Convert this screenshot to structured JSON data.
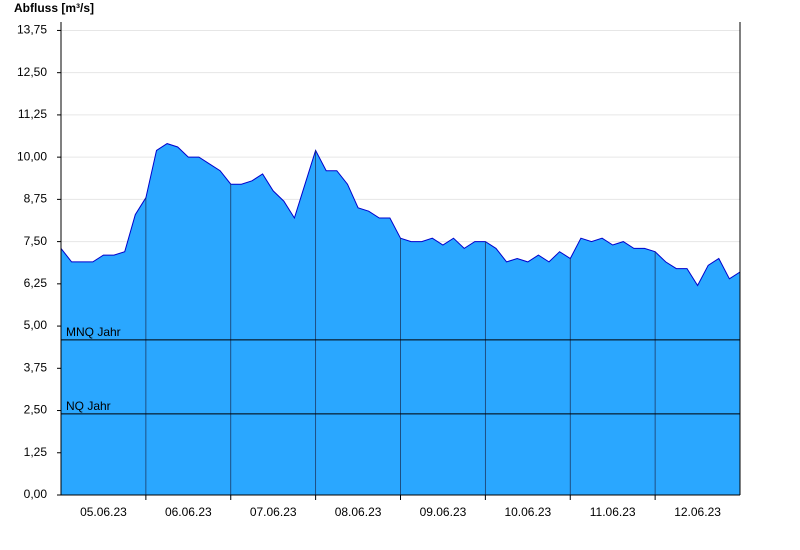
{
  "chart_data": {
    "type": "area",
    "title": "Abfluss [m³/s]",
    "x": [
      0,
      0.125,
      0.25,
      0.375,
      0.5,
      0.625,
      0.75,
      0.875,
      1,
      1.125,
      1.25,
      1.375,
      1.5,
      1.625,
      1.75,
      1.875,
      2,
      2.125,
      2.25,
      2.375,
      2.5,
      2.625,
      2.75,
      2.875,
      3,
      3.125,
      3.25,
      3.375,
      3.5,
      3.625,
      3.75,
      3.875,
      4,
      4.125,
      4.25,
      4.375,
      4.5,
      4.625,
      4.75,
      4.875,
      5,
      5.125,
      5.25,
      5.375,
      5.5,
      5.625,
      5.75,
      5.875,
      6,
      6.125,
      6.25,
      6.375,
      6.5,
      6.625,
      6.75,
      6.875,
      7,
      7.125,
      7.25,
      7.375,
      7.5,
      7.625,
      7.75,
      7.875,
      8
    ],
    "values": [
      7.3,
      6.9,
      6.9,
      6.9,
      7.1,
      7.1,
      7.2,
      8.3,
      8.8,
      10.2,
      10.4,
      10.3,
      10.0,
      10.0,
      9.8,
      9.6,
      9.2,
      9.2,
      9.3,
      9.5,
      9.0,
      8.7,
      8.2,
      9.2,
      10.2,
      9.6,
      9.6,
      9.2,
      8.5,
      8.4,
      8.2,
      8.2,
      7.6,
      7.5,
      7.5,
      7.6,
      7.4,
      7.6,
      7.3,
      7.5,
      7.5,
      7.3,
      6.9,
      7.0,
      6.9,
      7.1,
      6.9,
      7.2,
      7.0,
      7.6,
      7.5,
      7.6,
      7.4,
      7.5,
      7.3,
      7.3,
      7.2,
      6.9,
      6.7,
      6.7,
      6.2,
      6.8,
      7.0,
      6.4,
      6.6
    ],
    "fill_color": "#2aa7ff",
    "line_color": "#0000cc",
    "xlim": [
      0,
      8
    ],
    "xticks": [
      1,
      2,
      3,
      4,
      5,
      6,
      7
    ],
    "xtick_labels": [
      {
        "value": 0.5,
        "label": "05.06.23"
      },
      {
        "value": 1.5,
        "label": "06.06.23"
      },
      {
        "value": 2.5,
        "label": "07.06.23"
      },
      {
        "value": 3.5,
        "label": "08.06.23"
      },
      {
        "value": 4.5,
        "label": "09.06.23"
      },
      {
        "value": 5.5,
        "label": "10.06.23"
      },
      {
        "value": 6.5,
        "label": "11.06.23"
      },
      {
        "value": 7.5,
        "label": "12.06.23"
      }
    ],
    "ylim": [
      0,
      14
    ],
    "yticks": [
      {
        "value": 0,
        "label": "0,00"
      },
      {
        "value": 1.25,
        "label": "1,25"
      },
      {
        "value": 2.5,
        "label": "2,50"
      },
      {
        "value": 3.75,
        "label": "3,75"
      },
      {
        "value": 5,
        "label": "5,00"
      },
      {
        "value": 6.25,
        "label": "6,25"
      },
      {
        "value": 7.5,
        "label": "7,50"
      },
      {
        "value": 8.75,
        "label": "8,75"
      },
      {
        "value": 10,
        "label": "10,00"
      },
      {
        "value": 11.25,
        "label": "11,25"
      },
      {
        "value": 12.5,
        "label": "12,50"
      },
      {
        "value": 13.75,
        "label": "13,75"
      }
    ],
    "grid": true,
    "annotations": [
      {
        "label": "MNQ Jahr",
        "value": 4.59
      },
      {
        "label": "NQ Jahr",
        "value": 2.4
      }
    ]
  }
}
